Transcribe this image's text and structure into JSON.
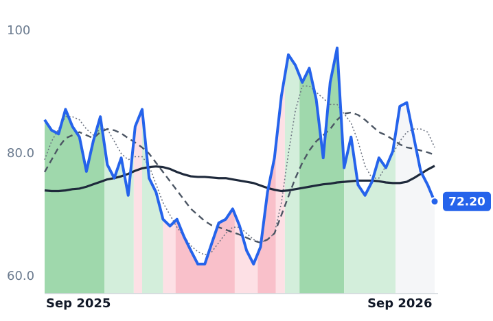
{
  "chart_data": {
    "type": "line",
    "x": [
      0,
      1,
      2,
      3,
      4,
      5,
      6,
      7,
      8,
      9,
      10,
      11,
      12,
      13,
      14,
      15,
      16,
      17,
      18,
      19,
      20,
      21,
      22,
      23,
      24,
      25,
      26,
      27,
      28,
      29,
      30,
      31,
      32,
      33,
      34,
      35,
      36,
      37,
      38,
      39,
      40,
      41,
      42,
      43,
      44,
      45,
      46,
      47,
      48,
      49,
      50,
      51,
      52,
      53,
      54,
      55,
      56
    ],
    "xlim": [
      0,
      56
    ],
    "xticks": [
      {
        "value": 0,
        "label": "Sep 2025"
      },
      {
        "value": 51,
        "label": "Sep 2026"
      }
    ],
    "ylim": [
      57.2,
      102
    ],
    "yticks": [
      {
        "value": 60,
        "label": "60.0"
      },
      {
        "value": 80,
        "label": "80.0"
      },
      100
    ],
    "bands": [
      {
        "x0": 0,
        "x1": 8.6,
        "color": "#9fd8ac"
      },
      {
        "x0": 8.6,
        "x1": 12.8,
        "color": "#d3eedb"
      },
      {
        "x0": 12.8,
        "x1": 14,
        "color": "#fde0e5"
      },
      {
        "x0": 14,
        "x1": 17,
        "color": "#d3eedb"
      },
      {
        "x0": 17,
        "x1": 18.8,
        "color": "#fde0e5"
      },
      {
        "x0": 18.8,
        "x1": 27.3,
        "color": "#f9c0ca"
      },
      {
        "x0": 27.3,
        "x1": 30.6,
        "color": "#fde0e5"
      },
      {
        "x0": 30.6,
        "x1": 33.2,
        "color": "#f9c0ca"
      },
      {
        "x0": 33.2,
        "x1": 34.5,
        "color": "#fde0e5"
      },
      {
        "x0": 34.5,
        "x1": 36.6,
        "color": "#d3eedb"
      },
      {
        "x0": 36.6,
        "x1": 43,
        "color": "#9fd8ac"
      },
      {
        "x0": 43,
        "x1": 50.4,
        "color": "#d3eedb"
      },
      {
        "x0": 50.4,
        "x1": 56,
        "color": "#f5f6f8"
      }
    ],
    "series": [
      {
        "color": "#6b7280",
        "dash": "2 3",
        "width": 1.6,
        "values": [
          79,
          82,
          84,
          86,
          86,
          85.5,
          84,
          83,
          84,
          84,
          82,
          80,
          79,
          79.5,
          79.5,
          78,
          75,
          72,
          70,
          68,
          66.5,
          65,
          64,
          63.5,
          64,
          65.5,
          67,
          68,
          68,
          67,
          66,
          65.5,
          66,
          67,
          72,
          80,
          87,
          91,
          91,
          90,
          89,
          88,
          88,
          86.5,
          85,
          82,
          78,
          76,
          76,
          78,
          80,
          82,
          83.5,
          84,
          84,
          83.5,
          81
        ]
      },
      {
        "color": "#4b5563",
        "dash": "9 6",
        "width": 2.4,
        "values": [
          77,
          79,
          81,
          82.5,
          83,
          83.5,
          83,
          82.5,
          83.5,
          84,
          83.8,
          83.3,
          82.5,
          81.8,
          81,
          80,
          78.5,
          77,
          75.5,
          74,
          72.5,
          71,
          70,
          69,
          68.3,
          68,
          67.6,
          67.2,
          66.8,
          66.3,
          65.8,
          65.5,
          66,
          67,
          70,
          73,
          76,
          78.5,
          80.5,
          82,
          83,
          84,
          85.5,
          86.5,
          86.7,
          86.3,
          85.5,
          84.5,
          83.5,
          83,
          82.3,
          81.5,
          81,
          80.8,
          80.5,
          80.2,
          79.8
        ]
      },
      {
        "color": "#1e293b",
        "width": 3.2,
        "values": [
          74,
          73.9,
          73.9,
          74,
          74.2,
          74.3,
          74.6,
          75,
          75.4,
          75.8,
          76,
          76.3,
          76.7,
          77.2,
          77.6,
          77.8,
          77.9,
          77.8,
          77.5,
          77,
          76.6,
          76.3,
          76.2,
          76.2,
          76.1,
          76,
          76,
          75.8,
          75.6,
          75.4,
          75.2,
          74.8,
          74.4,
          74.1,
          73.9,
          74,
          74.2,
          74.4,
          74.6,
          74.8,
          75,
          75.1,
          75.3,
          75.4,
          75.5,
          75.6,
          75.6,
          75.6,
          75.5,
          75.3,
          75.2,
          75.2,
          75.4,
          76,
          76.7,
          77.4,
          78
        ]
      },
      {
        "color": "#2563eb",
        "width": 4,
        "main": true,
        "values": [
          85.5,
          83.8,
          83.2,
          87.2,
          84.4,
          82.7,
          77.1,
          82.1,
          86,
          78.2,
          76,
          79.3,
          73.2,
          84.4,
          87.2,
          76,
          73.7,
          69.3,
          68.2,
          69.3,
          66.5,
          64.2,
          62,
          62,
          65.4,
          68.7,
          69.3,
          71,
          68.2,
          64.2,
          62,
          64.8,
          73.7,
          79.3,
          89.4,
          96.1,
          94.4,
          91.6,
          93.9,
          88.8,
          79.3,
          91.6,
          97.2,
          77.7,
          82.7,
          74.9,
          73.2,
          75.4,
          79.3,
          77.7,
          80.4,
          87.7,
          88.3,
          82.7,
          77.1,
          74.9,
          72.2
        ],
        "value_labels": [
          null,
          null,
          null,
          null,
          null,
          null,
          null,
          null,
          null,
          null,
          null,
          null,
          null,
          null,
          null,
          null,
          null,
          null,
          null,
          null,
          null,
          null,
          null,
          null,
          null,
          null,
          null,
          null,
          null,
          null,
          null,
          null,
          null,
          null,
          null,
          null,
          null,
          null,
          null,
          null,
          null,
          null,
          null,
          null,
          null,
          null,
          null,
          null,
          null,
          null,
          null,
          null,
          null,
          null,
          null,
          null,
          "72.20"
        ]
      }
    ]
  }
}
